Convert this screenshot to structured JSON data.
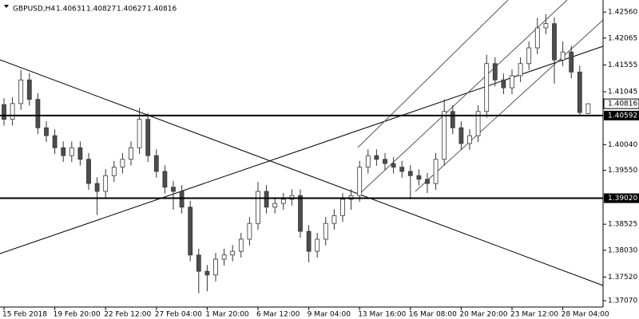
{
  "chart_data": {
    "type": "candlestick",
    "symbol": "GBPUSD,H4",
    "categories": [
      "15 Feb 2018",
      null,
      null,
      null,
      null,
      null,
      "19 Feb 20:00",
      null,
      null,
      null,
      null,
      null,
      "22 Feb 12:00",
      null,
      null,
      null,
      null,
      null,
      "27 Feb 04:00",
      null,
      null,
      null,
      null,
      null,
      "1 Mar 20:00",
      null,
      null,
      null,
      null,
      null,
      "6 Mar 12:00",
      null,
      null,
      null,
      null,
      null,
      "9 Mar 04:00",
      null,
      null,
      null,
      null,
      null,
      "13 Mar 16:00",
      null,
      null,
      null,
      null,
      null,
      "16 Mar 08:00",
      null,
      null,
      null,
      null,
      null,
      "20 Mar 20:00",
      null,
      null,
      null,
      null,
      null,
      "23 Mar 12:00",
      null,
      null,
      null,
      null,
      null,
      "28 Mar 04:00",
      null,
      null,
      null
    ],
    "open": [
      1.408,
      1.4052,
      1.4082,
      1.4127,
      1.409,
      1.4036,
      1.4021,
      1.3998,
      1.3983,
      1.3998,
      1.3976,
      1.393,
      1.3915,
      1.3945,
      1.3961,
      1.3976,
      1.3998,
      1.4052,
      1.3983,
      1.3953,
      1.3923,
      1.3915,
      1.3885,
      1.3794,
      1.3763,
      1.3756,
      1.3786,
      1.3794,
      1.3801,
      1.3824,
      1.3854,
      1.3915,
      1.3885,
      1.3892,
      1.39,
      1.3907,
      1.3839,
      1.3801,
      1.3824,
      1.3854,
      1.3869,
      1.39,
      1.3907,
      1.3961,
      1.3983,
      1.3976,
      1.3968,
      1.3961,
      1.3953,
      1.3945,
      1.3938,
      1.393,
      1.3976,
      1.4067,
      1.4036,
      1.4006,
      1.4021,
      1.4067,
      1.4158,
      1.4127,
      1.4112,
      1.4135,
      1.4158,
      1.4188,
      1.4226,
      1.4234,
      1.4165,
      1.418,
      1.4142,
      1.40631
    ],
    "high": [
      1.4092,
      1.4094,
      1.4146,
      1.414,
      1.4102,
      1.4048,
      1.4033,
      1.401,
      1.401,
      1.401,
      1.3988,
      1.3942,
      1.3957,
      1.3973,
      1.3988,
      1.401,
      1.4074,
      1.4064,
      1.3995,
      1.3965,
      1.3935,
      1.3927,
      1.3897,
      1.3806,
      1.3775,
      1.3798,
      1.3806,
      1.3813,
      1.3836,
      1.3866,
      1.3933,
      1.3927,
      1.3904,
      1.3912,
      1.3919,
      1.3919,
      1.3851,
      1.3836,
      1.3866,
      1.3881,
      1.3912,
      1.3919,
      1.3973,
      1.3995,
      1.3995,
      1.3988,
      1.398,
      1.3973,
      1.3965,
      1.3957,
      1.395,
      1.3988,
      1.409,
      1.4079,
      1.4048,
      1.4033,
      1.4079,
      1.4175,
      1.417,
      1.4139,
      1.4147,
      1.417,
      1.42,
      1.4245,
      1.4252,
      1.4246,
      1.42,
      1.4192,
      1.4154,
      1.40827
    ],
    "low": [
      1.404,
      1.404,
      1.407,
      1.4078,
      1.4024,
      1.4009,
      1.3986,
      1.3971,
      1.3971,
      1.3964,
      1.3918,
      1.387,
      1.3903,
      1.3933,
      1.3949,
      1.3964,
      1.3986,
      1.3971,
      1.3941,
      1.3911,
      1.388,
      1.3873,
      1.3782,
      1.3721,
      1.3725,
      1.3744,
      1.3774,
      1.3782,
      1.3789,
      1.3812,
      1.3842,
      1.3873,
      1.3873,
      1.388,
      1.3888,
      1.3827,
      1.378,
      1.3789,
      1.3812,
      1.3842,
      1.3857,
      1.388,
      1.3895,
      1.3949,
      1.3964,
      1.3956,
      1.3949,
      1.3941,
      1.39,
      1.3926,
      1.3912,
      1.3918,
      1.3964,
      1.4024,
      1.3994,
      1.3994,
      1.4009,
      1.4055,
      1.4115,
      1.41,
      1.41,
      1.4123,
      1.4146,
      1.4176,
      1.4214,
      1.412,
      1.4153,
      1.413,
      1.406,
      1.40627
    ],
    "close": [
      1.4052,
      1.4082,
      1.4127,
      1.409,
      1.4036,
      1.4021,
      1.3998,
      1.3983,
      1.3998,
      1.3976,
      1.393,
      1.3915,
      1.3945,
      1.3961,
      1.3976,
      1.3998,
      1.4052,
      1.3983,
      1.3953,
      1.3923,
      1.3915,
      1.3885,
      1.3794,
      1.3763,
      1.3756,
      1.3786,
      1.3794,
      1.3801,
      1.3824,
      1.3854,
      1.3915,
      1.3885,
      1.3892,
      1.39,
      1.3907,
      1.3839,
      1.3801,
      1.3824,
      1.3854,
      1.3869,
      1.39,
      1.3907,
      1.3961,
      1.3983,
      1.3976,
      1.3968,
      1.3961,
      1.3953,
      1.3945,
      1.3938,
      1.393,
      1.3976,
      1.4067,
      1.4036,
      1.4006,
      1.4021,
      1.4067,
      1.4158,
      1.4127,
      1.4112,
      1.4135,
      1.4158,
      1.4188,
      1.4226,
      1.4234,
      1.4165,
      1.418,
      1.4142,
      1.4065,
      1.40816
    ],
    "up_color": "#ffffff",
    "down_color": "#4d4d4d",
    "wick_color": "#333333",
    "ylim": [
      1.3695,
      1.4279
    ],
    "yticks": [
      {
        "value": 1.4256,
        "label": "1.42560"
      },
      {
        "value": 1.42065,
        "label": "1.42065"
      },
      {
        "value": 1.41555,
        "label": "1.41555"
      },
      {
        "value": 1.41045,
        "label": "1.41045"
      },
      {
        "value": 1.4004,
        "label": "1.40040"
      },
      {
        "value": 1.3955,
        "label": "1.39550"
      },
      {
        "value": 1.38525,
        "label": "1.38525"
      },
      {
        "value": 1.3803,
        "label": "1.38030"
      },
      {
        "value": 1.3752,
        "label": "1.37520"
      },
      {
        "value": 1.3707,
        "label": "1.37070"
      }
    ],
    "hlines": [
      1.40592,
      1.3902
    ],
    "hline_labels": [
      "1.40592",
      "1.39020"
    ]
  }
}
